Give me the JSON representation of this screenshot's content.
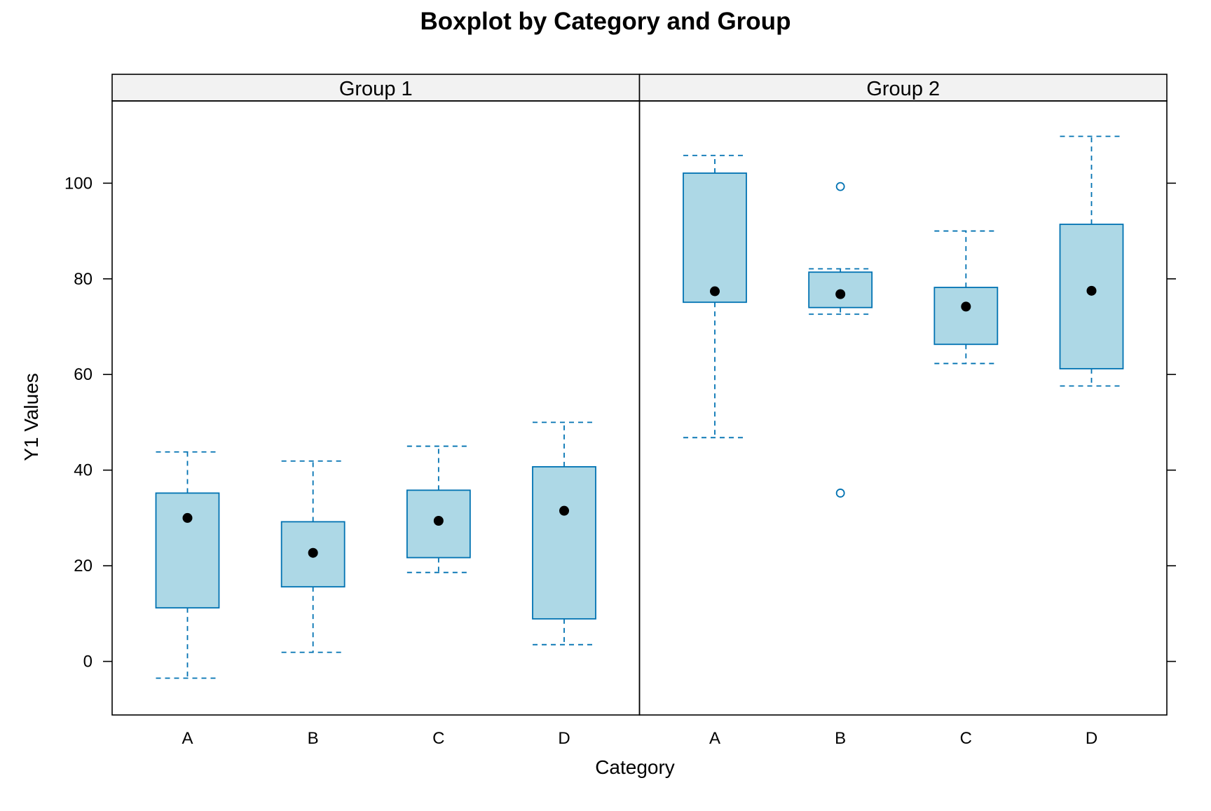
{
  "chart_data": {
    "type": "boxplot",
    "title": "Boxplot by Category and Group",
    "xlabel": "Category",
    "ylabel": "Y1 Values",
    "ylim": [
      -11.2,
      117.2
    ],
    "yticks": [
      0,
      20,
      40,
      60,
      80,
      100
    ],
    "categories": [
      "A",
      "B",
      "C",
      "D"
    ],
    "colors": {
      "box_fill": "#add8e6",
      "box_stroke": "#0072b2",
      "median_dot": "#000000",
      "strip_fill": "#f2f2f2"
    },
    "panels": [
      {
        "label": "Group 1",
        "boxes": [
          {
            "category": "A",
            "lower_whisker": -3.5,
            "q1": 11.2,
            "median": 30.0,
            "q3": 35.2,
            "upper_whisker": 43.8,
            "outliers": []
          },
          {
            "category": "B",
            "lower_whisker": 1.9,
            "q1": 15.6,
            "median": 22.7,
            "q3": 29.2,
            "upper_whisker": 41.9,
            "outliers": []
          },
          {
            "category": "C",
            "lower_whisker": 18.6,
            "q1": 21.7,
            "median": 29.4,
            "q3": 35.8,
            "upper_whisker": 45.0,
            "outliers": []
          },
          {
            "category": "D",
            "lower_whisker": 3.5,
            "q1": 8.9,
            "median": 31.5,
            "q3": 40.7,
            "upper_whisker": 50.0,
            "outliers": []
          }
        ]
      },
      {
        "label": "Group 2",
        "boxes": [
          {
            "category": "A",
            "lower_whisker": 46.8,
            "q1": 75.1,
            "median": 77.4,
            "q3": 102.1,
            "upper_whisker": 105.8,
            "outliers": []
          },
          {
            "category": "B",
            "lower_whisker": 72.6,
            "q1": 74.0,
            "median": 76.8,
            "q3": 81.4,
            "upper_whisker": 82.1,
            "outliers": [
              99.3,
              35.2
            ]
          },
          {
            "category": "C",
            "lower_whisker": 62.3,
            "q1": 66.3,
            "median": 74.2,
            "q3": 78.2,
            "upper_whisker": 90.0,
            "outliers": []
          },
          {
            "category": "D",
            "lower_whisker": 57.6,
            "q1": 61.2,
            "median": 77.5,
            "q3": 91.4,
            "upper_whisker": 109.8,
            "outliers": []
          }
        ]
      }
    ]
  }
}
